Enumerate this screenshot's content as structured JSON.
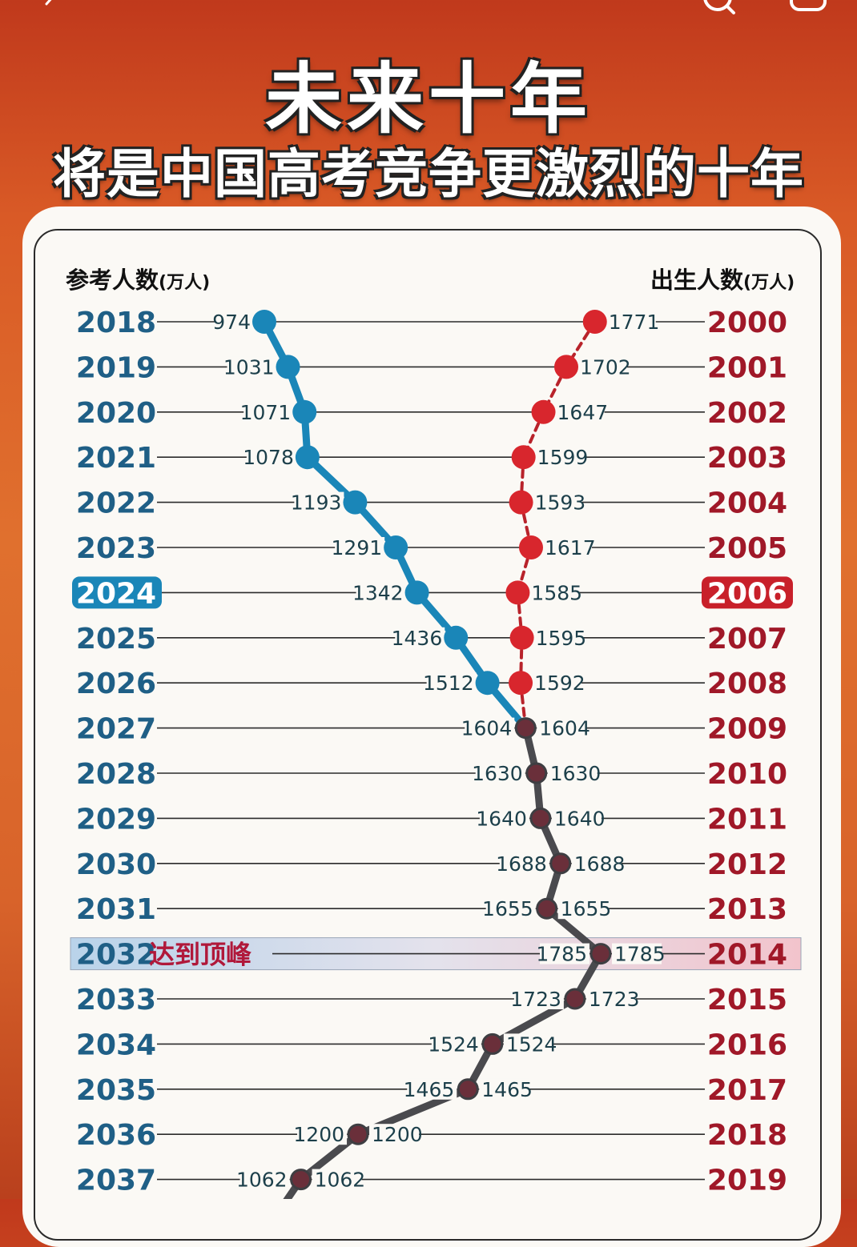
{
  "title": "未来十年",
  "subtitle": "将是中国高考竞争更激烈的十年",
  "left_header": "参考人数",
  "left_unit": "(万人)",
  "right_header": "出生人数",
  "right_unit": "(万人)",
  "peak_label": "达到顶峰",
  "colors": {
    "blue": "#1a86b8",
    "red": "#d8262d",
    "grey": "#4a4a4e",
    "year_blue": "#1f5f86",
    "year_red": "#a01828",
    "value_text": "#1c3f4a"
  },
  "icons": [
    "back-icon",
    "search-icon",
    "more-icon"
  ],
  "chart_data": {
    "type": "line",
    "left_label": "参考人数(万人)",
    "right_label": "出生人数(万人)",
    "exam_years": [
      "2018",
      "2019",
      "2020",
      "2021",
      "2022",
      "2023",
      "2024",
      "2025",
      "2026",
      "2027",
      "2028",
      "2029",
      "2030",
      "2031",
      "2032",
      "2033",
      "2034",
      "2035",
      "2036",
      "2037"
    ],
    "birth_years": [
      "2000",
      "2001",
      "2002",
      "2003",
      "2004",
      "2005",
      "2006",
      "2007",
      "2008",
      "2009",
      "2010",
      "2011",
      "2012",
      "2013",
      "2014",
      "2015",
      "2016",
      "2017",
      "2018",
      "2019"
    ],
    "highlighted_exam_year": "2024",
    "highlighted_birth_year": "2006",
    "peak_index": 14,
    "series": [
      {
        "name": "参考人数",
        "values": [
          974,
          1031,
          1071,
          1078,
          1193,
          1291,
          1342,
          1436,
          1512,
          1604,
          1630,
          1640,
          1688,
          1655,
          1785,
          1723,
          1524,
          1465,
          1200,
          1062
        ],
        "labels": [
          "974",
          "1031",
          "1071",
          "1078",
          "1193",
          "1291",
          "1342",
          "1436",
          "1512",
          "1604",
          "1630",
          "1640",
          "1688",
          "1655",
          "1785",
          "1723",
          "1524",
          "1465",
          "1200",
          "1062"
        ]
      },
      {
        "name": "出生人数",
        "values": [
          1771,
          1702,
          1647,
          1599,
          1593,
          1617,
          1585,
          1595,
          1592,
          1604,
          1630,
          1640,
          1688,
          1655,
          1785,
          1723,
          1524,
          1465,
          1200,
          1062
        ],
        "labels": [
          "1771",
          "1702",
          "1647",
          "1599",
          "1593",
          "1617",
          "1585",
          "1595",
          "1592",
          "1604",
          "1630",
          "1640",
          "1688",
          "1655",
          "1785",
          "1723",
          "1524",
          "1465",
          "1200",
          "1062"
        ]
      }
    ],
    "x_range": [
      974,
      1785
    ]
  }
}
